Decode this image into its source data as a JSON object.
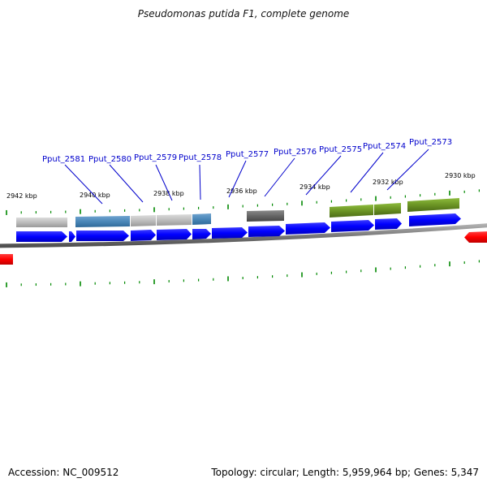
{
  "title": "Pseudomonas putida F1, complete genome",
  "footer": {
    "accession": "Accession: NC_009512",
    "summary": "Topology: circular; Length: 5,959,964 bp; Genes: 5,347"
  },
  "colors": {
    "background": "#ffffff",
    "forward_cds": "#0000ff",
    "reverse_cds": "#ff0000",
    "backbone": "#808080",
    "tick": "#008800",
    "label": "#0000cc",
    "leader": "#0000cc",
    "feature_gray": "#c0c0c0",
    "feature_blue": "#4a87b8",
    "feature_dark": "#686868",
    "feature_green": "#6b9424"
  },
  "axis": {
    "tick_labels": [
      "2942 kbp",
      "2940 kbp",
      "2938 kbp",
      "2936 kbp",
      "2934 kbp",
      "2932 kbp",
      "2930 kbp"
    ]
  },
  "genes": [
    {
      "label": "Pput_2581"
    },
    {
      "label": "Pput_2580"
    },
    {
      "label": "Pput_2579"
    },
    {
      "label": "Pput_2578"
    },
    {
      "label": "Pput_2577"
    },
    {
      "label": "Pput_2576"
    },
    {
      "label": "Pput_2575"
    },
    {
      "label": "Pput_2574"
    },
    {
      "label": "Pput_2573"
    }
  ]
}
